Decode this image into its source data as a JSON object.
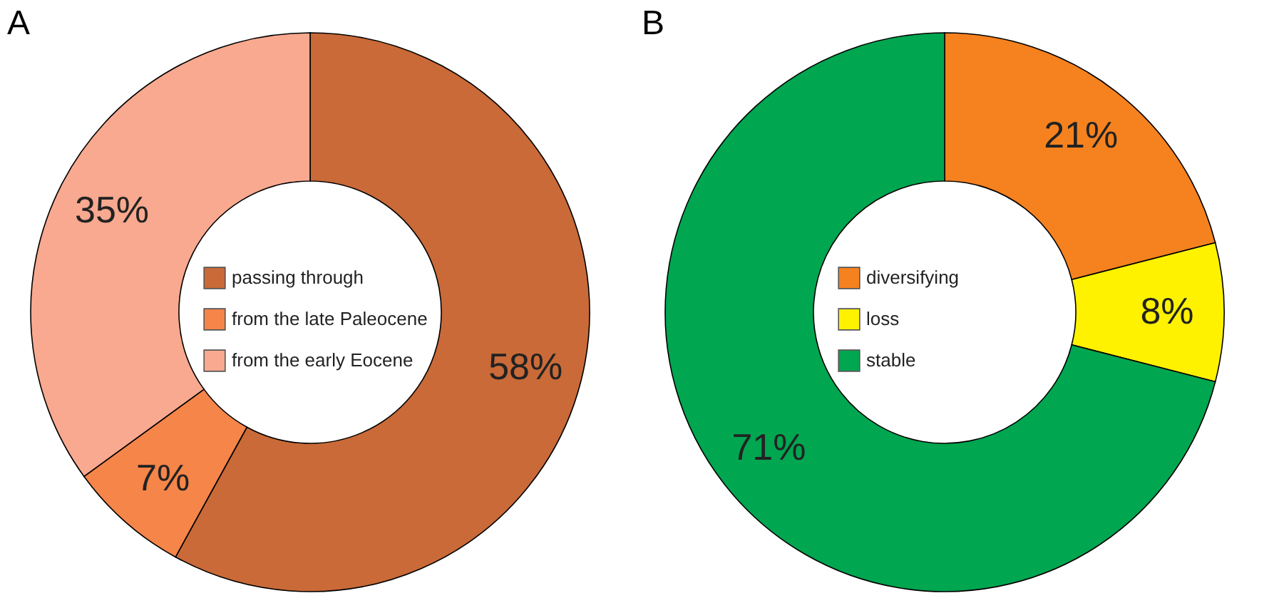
{
  "chart_data": [
    {
      "type": "donut",
      "title": "A",
      "categories": [
        "passing through",
        "from the late Paleocene",
        "from the early Eocene"
      ],
      "values": [
        58,
        7,
        35
      ],
      "colors": [
        "#c96a38",
        "#f58549",
        "#f8a98f"
      ],
      "value_labels": [
        "58%",
        "7%",
        "35%"
      ],
      "legend": "center"
    },
    {
      "type": "donut",
      "title": "B",
      "categories": [
        "diversifying",
        "loss",
        "stable"
      ],
      "values": [
        21,
        8,
        71
      ],
      "colors": [
        "#f5821f",
        "#fff200",
        "#00a650"
      ],
      "value_labels": [
        "21%",
        "8%",
        "71%"
      ],
      "legend": "center"
    }
  ]
}
